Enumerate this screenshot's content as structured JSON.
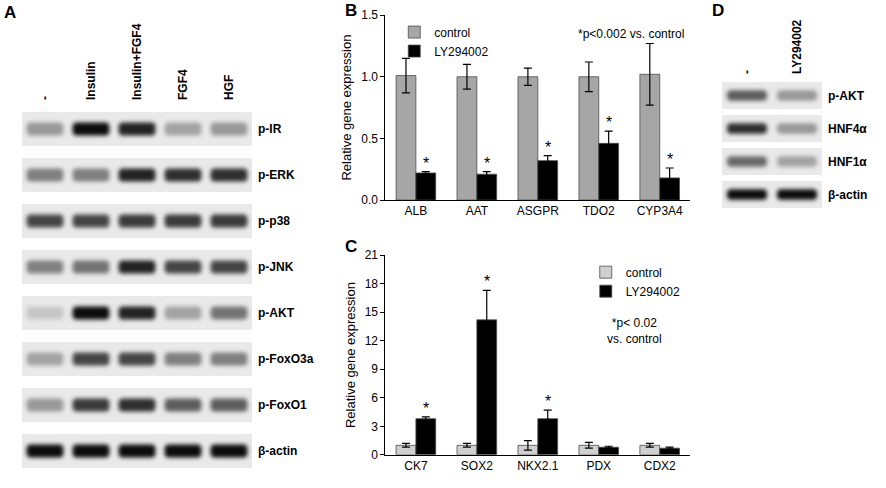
{
  "chart_data": [
    {
      "label": "B",
      "type": "bar",
      "y_label": "Relative gene expression",
      "annotation": "*p<0.002 vs. control",
      "categories": [
        "ALB",
        "AAT",
        "ASGPR",
        "TDO2",
        "CYP3A4"
      ],
      "series": [
        {
          "name": "control",
          "color": "#a6a6a6",
          "values": [
            1.01,
            1.0,
            1.0,
            1.0,
            1.02
          ],
          "error": [
            0.14,
            0.1,
            0.07,
            0.12,
            0.25
          ]
        },
        {
          "name": "LY294002",
          "color": "#000000",
          "values": [
            0.22,
            0.21,
            0.32,
            0.46,
            0.18
          ],
          "error": [
            0.01,
            0.02,
            0.04,
            0.1,
            0.08
          ],
          "significance": [
            "*",
            "*",
            "*",
            "*",
            "*"
          ]
        }
      ],
      "ylim": [
        0,
        1.5
      ],
      "yticks": [
        {
          "value": 0,
          "label": "0.0"
        },
        {
          "value": 0.5,
          "label": "0.5"
        },
        {
          "value": 1,
          "label": "1.0"
        },
        {
          "value": 1.5,
          "label": "1.5"
        }
      ],
      "legend": "top-left"
    },
    {
      "label": "C",
      "type": "bar",
      "y_label": "Relative gene expression",
      "annotation": "*p< 0.02\nvs. control",
      "categories": [
        "CK7",
        "SOX2",
        "NKX2.1",
        "PDX",
        "CDX2"
      ],
      "series": [
        {
          "name": "control",
          "color": "#cfcfcf",
          "values": [
            1.0,
            1.0,
            1.0,
            1.0,
            1.0
          ],
          "error": [
            0.2,
            0.2,
            0.5,
            0.3,
            0.2
          ]
        },
        {
          "name": "LY294002",
          "color": "#000000",
          "values": [
            3.8,
            14.2,
            3.8,
            0.8,
            0.7
          ],
          "error": [
            0.2,
            3.1,
            0.9,
            0.1,
            0.1
          ],
          "significance": [
            "*",
            "*",
            "*",
            null,
            null
          ]
        }
      ],
      "ylim": [
        0,
        21
      ],
      "yticks": [
        0,
        3,
        6,
        9,
        12,
        15,
        18,
        21
      ],
      "legend": "top-right"
    }
  ],
  "blots": [
    {
      "label": "A",
      "lanes": [
        "-",
        "Insulin",
        "Insulin+FGF4",
        "FGF4",
        "HGF"
      ],
      "rows": [
        {
          "name": "p-IR",
          "bands": [
            0.35,
            0.95,
            0.85,
            0.3,
            0.35
          ]
        },
        {
          "name": "p-ERK",
          "bands": [
            0.45,
            0.45,
            0.85,
            0.8,
            0.8
          ]
        },
        {
          "name": "p-p38",
          "bands": [
            0.7,
            0.7,
            0.75,
            0.75,
            0.75
          ]
        },
        {
          "name": "p-JNK",
          "bands": [
            0.45,
            0.5,
            0.85,
            0.7,
            0.7
          ]
        },
        {
          "name": "p-AKT",
          "bands": [
            0.15,
            0.95,
            0.85,
            0.3,
            0.5
          ]
        },
        {
          "name": "p-FoxO3a",
          "bands": [
            0.3,
            0.7,
            0.7,
            0.45,
            0.45
          ]
        },
        {
          "name": "p-FoxO1",
          "bands": [
            0.35,
            0.75,
            0.8,
            0.6,
            0.6
          ]
        },
        {
          "name": "β-actin",
          "bands": [
            0.95,
            0.95,
            0.95,
            0.95,
            0.95
          ]
        }
      ]
    },
    {
      "label": "D",
      "lanes": [
        "-",
        "LY294002"
      ],
      "rows": [
        {
          "name": "p-AKT",
          "bands": [
            0.6,
            0.35
          ]
        },
        {
          "name": "HNF4α",
          "bands": [
            0.8,
            0.35
          ]
        },
        {
          "name": "HNF1α",
          "bands": [
            0.55,
            0.3
          ]
        },
        {
          "name": "β-actin",
          "bands": [
            0.95,
            0.95
          ]
        }
      ]
    }
  ]
}
